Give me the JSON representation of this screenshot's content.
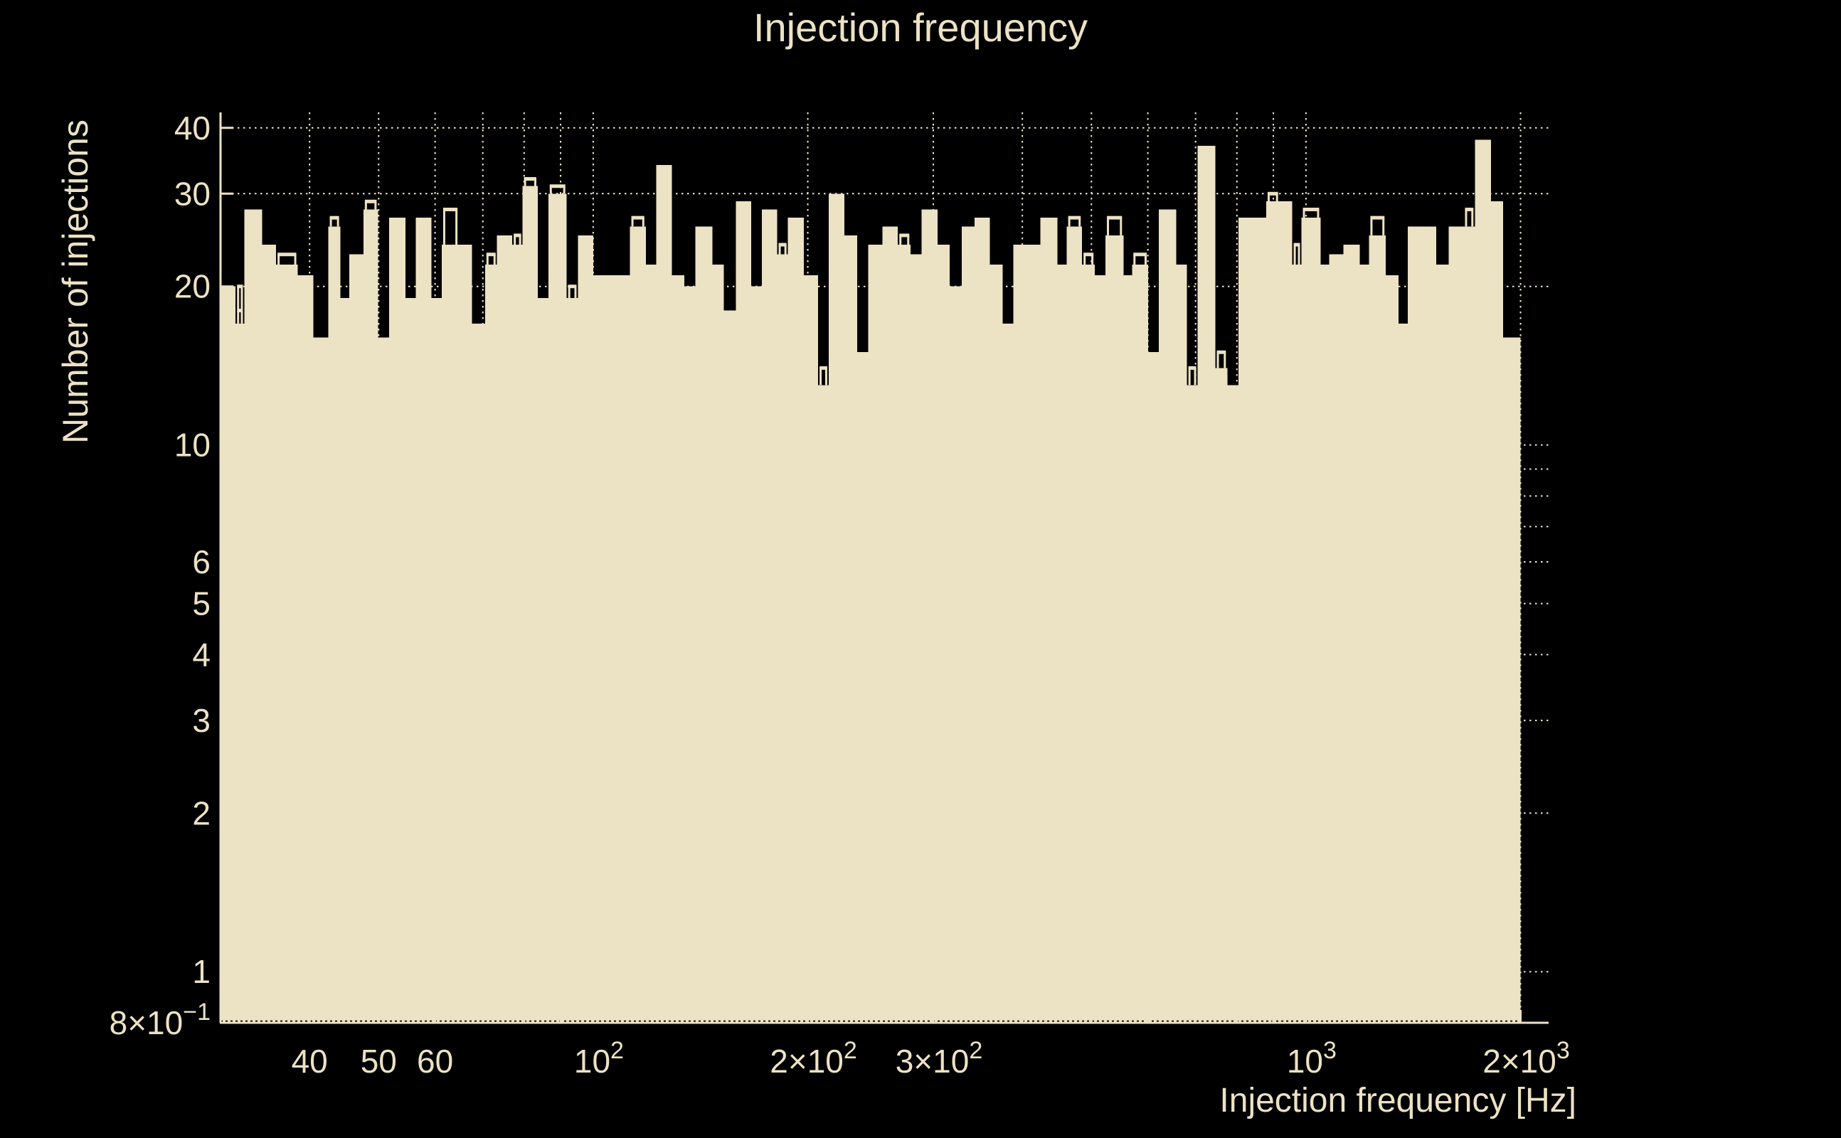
{
  "title": "Injection frequency",
  "colors": {
    "background": "#000000",
    "foreground": "#ece2c4",
    "bar_fill": "#ece2c4",
    "grid": "#efe7cd",
    "notch": "#000000"
  },
  "y_axis": {
    "label": "Number of injections",
    "min": 0.8,
    "max": 42.8,
    "scale": "log",
    "ticks": [
      {
        "v": 40,
        "label": "40",
        "major": true
      },
      {
        "v": 30,
        "label": "30",
        "major": true
      },
      {
        "v": 20,
        "label": "20",
        "major": true
      },
      {
        "v": 10,
        "label": "10",
        "major": true
      },
      {
        "v": 9,
        "major": false
      },
      {
        "v": 8,
        "major": false
      },
      {
        "v": 7,
        "major": false
      },
      {
        "v": 6,
        "label": "6",
        "major": false
      },
      {
        "v": 5,
        "label": "5",
        "major": false
      },
      {
        "v": 4,
        "label": "4",
        "major": false
      },
      {
        "v": 3,
        "label": "3",
        "major": false
      },
      {
        "v": 2,
        "label": "2",
        "major": false
      },
      {
        "v": 1,
        "label": "1",
        "major": true
      },
      {
        "v": 0.8,
        "label": "8×10",
        "exp": "−1",
        "major": false
      }
    ]
  },
  "x_axis": {
    "label": "Injection frequency [Hz]",
    "min": 30,
    "max": 2190,
    "scale": "log",
    "unit": "Hz",
    "ticks": [
      {
        "v": 40,
        "label": "40",
        "major": true
      },
      {
        "v": 50,
        "label": "50",
        "major": true
      },
      {
        "v": 60,
        "label": "60",
        "major": true
      },
      {
        "v": 70,
        "major": false
      },
      {
        "v": 80,
        "major": false
      },
      {
        "v": 90,
        "major": false
      },
      {
        "v": 100,
        "label": "10",
        "exp": "2",
        "major": true
      },
      {
        "v": 200,
        "label": "2×10",
        "exp": "2",
        "major": true
      },
      {
        "v": 300,
        "label": "3×10",
        "exp": "2",
        "major": true
      },
      {
        "v": 400,
        "major": false
      },
      {
        "v": 500,
        "major": false
      },
      {
        "v": 600,
        "major": false
      },
      {
        "v": 700,
        "major": false
      },
      {
        "v": 800,
        "major": false
      },
      {
        "v": 900,
        "major": false
      },
      {
        "v": 1000,
        "label": "10",
        "exp": "3",
        "major": true
      },
      {
        "v": 2000,
        "label": "2×10",
        "exp": "3",
        "major": true
      }
    ]
  },
  "chart_data": {
    "type": "bar",
    "style": "log-log filled step histogram with overlaid stairs caps",
    "title": "Injection frequency",
    "xlabel": "Injection frequency [Hz]",
    "ylabel": "Number of injections",
    "xlim": [
      30,
      2190
    ],
    "ylim": [
      0.8,
      42.8
    ],
    "data_range_hz": [
      30,
      2000
    ],
    "grid": true,
    "legend": false,
    "bars_format": "[freq_lo_hz, freq_hi_hz, count, optional_cap_counts[]]",
    "bars": [
      [
        30,
        31.5,
        20
      ],
      [
        31.5,
        32.4,
        17,
        [
          20,
          18
        ]
      ],
      [
        32.4,
        34.3,
        28
      ],
      [
        34.3,
        35.9,
        24
      ],
      [
        35.9,
        38.5,
        22,
        [
          23
        ]
      ],
      [
        38.5,
        40.5,
        21
      ],
      [
        40.5,
        42.5,
        16
      ],
      [
        42.5,
        44.2,
        26,
        [
          27
        ]
      ],
      [
        44.2,
        45.5,
        19
      ],
      [
        45.5,
        47.6,
        23
      ],
      [
        47.6,
        49.9,
        28,
        [
          29
        ]
      ],
      [
        49.9,
        51.7,
        16
      ],
      [
        51.7,
        54.5,
        27
      ],
      [
        54.5,
        56.4,
        19
      ],
      [
        56.4,
        59.3,
        27
      ],
      [
        59.3,
        61.3,
        19
      ],
      [
        61.3,
        64.8,
        24,
        [
          28
        ]
      ],
      [
        64.8,
        67.6,
        24
      ],
      [
        67.6,
        70.5,
        17
      ],
      [
        70.5,
        73.3,
        22,
        [
          23
        ]
      ],
      [
        73.3,
        77,
        25
      ],
      [
        77,
        79.6,
        24,
        [
          25
        ]
      ],
      [
        79.6,
        83.6,
        31,
        [
          32
        ]
      ],
      [
        83.6,
        86.5,
        19
      ],
      [
        86.5,
        91.8,
        30,
        [
          31
        ]
      ],
      [
        91.8,
        95.2,
        19,
        [
          20
        ]
      ],
      [
        95.2,
        100,
        25
      ],
      [
        100,
        112.6,
        21
      ],
      [
        112.6,
        118.5,
        26,
        [
          27
        ]
      ],
      [
        118.5,
        122.6,
        22
      ],
      [
        122.6,
        128.9,
        34
      ],
      [
        128.9,
        134.3,
        21
      ],
      [
        134.3,
        139.1,
        20
      ],
      [
        139.1,
        147,
        26
      ],
      [
        147,
        152.4,
        22
      ],
      [
        152.4,
        158.5,
        18
      ],
      [
        158.5,
        166.6,
        29
      ],
      [
        166.6,
        172.5,
        20
      ],
      [
        172.5,
        181.2,
        28
      ],
      [
        181.2,
        187.6,
        23,
        [
          24
        ]
      ],
      [
        187.6,
        197.4,
        27
      ],
      [
        197.4,
        206.8,
        21
      ],
      [
        206.8,
        214,
        13,
        [
          14
        ]
      ],
      [
        214,
        225.2,
        30
      ],
      [
        225.2,
        234.7,
        25
      ],
      [
        234.7,
        243.1,
        15
      ],
      [
        243.1,
        254.6,
        24
      ],
      [
        254.6,
        267.6,
        26
      ],
      [
        267.6,
        278.9,
        24,
        [
          25
        ]
      ],
      [
        278.9,
        288.7,
        23
      ],
      [
        288.7,
        304.2,
        28
      ],
      [
        304.2,
        316.2,
        24
      ],
      [
        316.2,
        328.9,
        20
      ],
      [
        328.9,
        342.7,
        26
      ],
      [
        342.7,
        360.3,
        27
      ],
      [
        360.3,
        375.4,
        22
      ],
      [
        375.4,
        388.5,
        17
      ],
      [
        388.5,
        424.1,
        24
      ],
      [
        424.1,
        448.2,
        27
      ],
      [
        448.2,
        461.7,
        22
      ],
      [
        461.7,
        485.2,
        26,
        [
          27
        ]
      ],
      [
        485.2,
        505.6,
        22,
        [
          23
        ]
      ],
      [
        505.6,
        523.2,
        21
      ],
      [
        523.2,
        554.5,
        25,
        [
          27
        ]
      ],
      [
        554.5,
        570,
        21
      ],
      [
        570,
        600.5,
        22,
        [
          23
        ]
      ],
      [
        600.5,
        621.4,
        15
      ],
      [
        621.4,
        657.9,
        28
      ],
      [
        657.9,
        680.9,
        22
      ],
      [
        680.9,
        704.6,
        13,
        [
          14
        ]
      ],
      [
        704.6,
        746.2,
        37
      ],
      [
        746.2,
        775.6,
        14,
        [
          15
        ]
      ],
      [
        775.6,
        804.5,
        13
      ],
      [
        804.5,
        879.4,
        27
      ],
      [
        879.4,
        918.1,
        29,
        [
          30
        ]
      ],
      [
        918.1,
        956.6,
        29
      ],
      [
        956.6,
        985.5,
        22,
        [
          24
        ]
      ],
      [
        985.5,
        1048.4,
        27,
        [
          28
        ]
      ],
      [
        1048.4,
        1077.7,
        22
      ],
      [
        1077.7,
        1128.5,
        23
      ],
      [
        1128.5,
        1189.8,
        24
      ],
      [
        1189.8,
        1225.7,
        22
      ],
      [
        1225.7,
        1294.6,
        25,
        [
          27
        ]
      ],
      [
        1294.6,
        1348.6,
        21
      ],
      [
        1348.6,
        1389.3,
        17
      ],
      [
        1389.3,
        1522.5,
        26
      ],
      [
        1522.5,
        1586.2,
        22
      ],
      [
        1586.2,
        1663.9,
        26
      ],
      [
        1663.9,
        1725.6,
        26,
        [
          28
        ]
      ],
      [
        1725.6,
        1817.8,
        38
      ],
      [
        1817.8,
        1889.8,
        29
      ],
      [
        1889.8,
        2000,
        16
      ]
    ]
  }
}
